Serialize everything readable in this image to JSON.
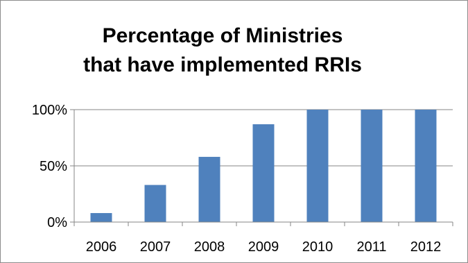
{
  "chart_data": {
    "type": "bar",
    "title_lines": [
      "Percentage of Ministries",
      "that have implemented RRIs"
    ],
    "categories": [
      "2006",
      "2007",
      "2008",
      "2009",
      "2010",
      "2011",
      "2012"
    ],
    "values": [
      8,
      33,
      58,
      87,
      100,
      100,
      100
    ],
    "value_unit": "%",
    "ylim": [
      0,
      100
    ],
    "yticks": [
      0,
      50,
      100
    ],
    "ytick_labels": [
      "0%",
      "50%",
      "100%"
    ],
    "xlabel": "",
    "ylabel": "",
    "grid": true,
    "legend": false,
    "bar_color": "#4f81bd"
  }
}
